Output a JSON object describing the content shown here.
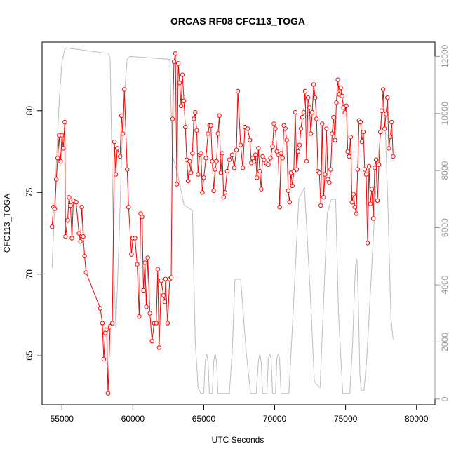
{
  "chart_data": {
    "type": "line",
    "title": "ORCAS RF08 CFC113_TOGA",
    "xlabel": "UTC Seconds",
    "ylabel": "CFC113_TOGA",
    "xlim": [
      53600,
      81300
    ],
    "ylim": [
      62,
      84.2
    ],
    "y2lim": [
      -200,
      12500
    ],
    "x_ticks": [
      55000,
      60000,
      65000,
      70000,
      75000,
      80000
    ],
    "y_ticks": [
      65,
      70,
      75,
      80
    ],
    "y2_ticks": [
      0,
      2000,
      4000,
      6000,
      8000,
      10000,
      12000
    ],
    "x_tick_labels": [
      "55000",
      "60000",
      "65000",
      "70000",
      "75000",
      "80000"
    ],
    "y_tick_labels": [
      "65",
      "70",
      "75",
      "80"
    ],
    "y2_tick_labels": [
      "0",
      "2000",
      "4000",
      "6000",
      "8000",
      "10000",
      "12000"
    ],
    "colors": {
      "series": "#ff0000",
      "altitude": "#bebebe",
      "box": "#000000",
      "y2axis": "#999999"
    },
    "series": [
      {
        "values": [
          [
            54300,
            72.9
          ],
          [
            54400,
            74.1
          ],
          [
            54500,
            74.0
          ],
          [
            54600,
            75.8
          ],
          [
            54700,
            77.1
          ],
          [
            54800,
            78.5
          ],
          [
            54900,
            76.9
          ],
          [
            55000,
            78.5
          ],
          [
            55100,
            77.7
          ],
          [
            55200,
            79.3
          ],
          [
            55250,
            72.3
          ],
          [
            55400,
            73.3
          ],
          [
            55500,
            74.7
          ],
          [
            55600,
            74.2
          ],
          [
            55700,
            72.2
          ],
          [
            55800,
            74.5
          ],
          [
            56000,
            74.4
          ],
          [
            56200,
            72.5
          ],
          [
            56300,
            72.0
          ],
          [
            56400,
            74.1
          ],
          [
            56500,
            72.3
          ],
          [
            56600,
            71.1
          ],
          [
            56700,
            70.1
          ],
          [
            57700,
            67.9
          ],
          [
            57850,
            67.0
          ],
          [
            57950,
            64.8
          ],
          [
            58050,
            66.4
          ],
          [
            58150,
            66.6
          ],
          [
            58250,
            62.7
          ],
          [
            58400,
            66.8
          ],
          [
            58550,
            67.0
          ],
          [
            58700,
            78.1
          ],
          [
            58800,
            76.1
          ],
          [
            58900,
            77.7
          ],
          [
            59100,
            77.2
          ],
          [
            59200,
            79.7
          ],
          [
            59300,
            78.6
          ],
          [
            59400,
            81.3
          ],
          [
            59600,
            76.4
          ],
          [
            59700,
            74.1
          ],
          [
            59900,
            71.2
          ],
          [
            60000,
            72.2
          ],
          [
            60150,
            72.2
          ],
          [
            60300,
            70.6
          ],
          [
            60450,
            67.4
          ],
          [
            60550,
            73.7
          ],
          [
            60650,
            73.5
          ],
          [
            60750,
            69.0
          ],
          [
            60850,
            70.7
          ],
          [
            60950,
            68.0
          ],
          [
            61050,
            71.0
          ],
          [
            61200,
            67.6
          ],
          [
            61350,
            65.9
          ],
          [
            61500,
            67.0
          ],
          [
            61650,
            67.0
          ],
          [
            61750,
            70.3
          ],
          [
            61850,
            65.5
          ],
          [
            62000,
            69.6
          ],
          [
            62150,
            68.7
          ],
          [
            62250,
            68.3
          ],
          [
            62300,
            69.7
          ],
          [
            62450,
            67.0
          ],
          [
            62600,
            69.7
          ],
          [
            62700,
            69.8
          ],
          [
            62800,
            79.5
          ],
          [
            62900,
            83.0
          ],
          [
            63000,
            83.5
          ],
          [
            63100,
            75.5
          ],
          [
            63200,
            82.9
          ],
          [
            63300,
            81.7
          ],
          [
            63400,
            80.3
          ],
          [
            63500,
            82.2
          ],
          [
            63600,
            80.6
          ],
          [
            63700,
            79.0
          ],
          [
            63800,
            77.0
          ],
          [
            63900,
            75.7
          ],
          [
            64000,
            76.9
          ],
          [
            64100,
            76.2
          ],
          [
            64200,
            77.4
          ],
          [
            64300,
            79.5
          ],
          [
            64400,
            79.9
          ],
          [
            64500,
            78.8
          ],
          [
            64600,
            76.1
          ],
          [
            64700,
            77.3
          ],
          [
            64800,
            77.4
          ],
          [
            64900,
            75.0
          ],
          [
            65000,
            75.9
          ],
          [
            65150,
            77.1
          ],
          [
            65300,
            78.6
          ],
          [
            65400,
            79.1
          ],
          [
            65500,
            79.1
          ],
          [
            65600,
            76.9
          ],
          [
            65700,
            75.1
          ],
          [
            65800,
            76.4
          ],
          [
            65900,
            76.9
          ],
          [
            66000,
            78.6
          ],
          [
            66100,
            79.7
          ],
          [
            66200,
            76.2
          ],
          [
            66300,
            77.4
          ],
          [
            66400,
            74.7
          ],
          [
            66500,
            75.0
          ],
          [
            66650,
            76.3
          ],
          [
            66800,
            77.0
          ],
          [
            67000,
            77.3
          ],
          [
            67150,
            76.5
          ],
          [
            67300,
            77.6
          ],
          [
            67400,
            81.2
          ],
          [
            67600,
            77.9
          ],
          [
            67750,
            76.5
          ],
          [
            67900,
            79.0
          ],
          [
            68100,
            78.9
          ],
          [
            68250,
            78.2
          ],
          [
            68350,
            76.8
          ],
          [
            68450,
            77.1
          ],
          [
            68550,
            76.9
          ],
          [
            68650,
            77.3
          ],
          [
            68750,
            75.9
          ],
          [
            68850,
            77.7
          ],
          [
            68950,
            76.3
          ],
          [
            69050,
            75.2
          ],
          [
            69150,
            77.2
          ],
          [
            69250,
            77.0
          ],
          [
            69400,
            76.8
          ],
          [
            69550,
            76.7
          ],
          [
            69700,
            77.1
          ],
          [
            69850,
            77.8
          ],
          [
            69950,
            79.2
          ],
          [
            70050,
            78.9
          ],
          [
            70150,
            77.5
          ],
          [
            70250,
            77.3
          ],
          [
            70350,
            74.1
          ],
          [
            70450,
            77.4
          ],
          [
            70550,
            77.1
          ],
          [
            70650,
            79.1
          ],
          [
            70750,
            78.9
          ],
          [
            70850,
            78.2
          ],
          [
            70950,
            75.1
          ],
          [
            71050,
            74.4
          ],
          [
            71150,
            76.2
          ],
          [
            71250,
            75.4
          ],
          [
            71350,
            76.3
          ],
          [
            71450,
            79.9
          ],
          [
            71550,
            76.4
          ],
          [
            71650,
            77.5
          ],
          [
            71750,
            77.9
          ],
          [
            71850,
            78.9
          ],
          [
            71950,
            79.6
          ],
          [
            72050,
            79.9
          ],
          [
            72150,
            81.2
          ],
          [
            72250,
            76.9
          ],
          [
            72350,
            80.8
          ],
          [
            72450,
            80.2
          ],
          [
            72550,
            78.6
          ],
          [
            72650,
            79.9
          ],
          [
            72750,
            81.6
          ],
          [
            72850,
            80.8
          ],
          [
            72950,
            79.5
          ],
          [
            73050,
            76.3
          ],
          [
            73150,
            76.2
          ],
          [
            73250,
            74.2
          ],
          [
            73350,
            79.2
          ],
          [
            73450,
            74.7
          ],
          [
            73550,
            76.1
          ],
          [
            73650,
            78.9
          ],
          [
            73750,
            75.8
          ],
          [
            73850,
            75.6
          ],
          [
            73950,
            76.4
          ],
          [
            74050,
            78.6
          ],
          [
            74150,
            79.6
          ],
          [
            74250,
            78.2
          ],
          [
            74350,
            80.5
          ],
          [
            74450,
            81.9
          ],
          [
            74550,
            81.0
          ],
          [
            74650,
            81.4
          ],
          [
            74750,
            80.9
          ],
          [
            74850,
            80.2
          ],
          [
            74950,
            79.9
          ],
          [
            75050,
            80.3
          ],
          [
            75150,
            77.5
          ],
          [
            75250,
            77.2
          ],
          [
            75350,
            78.4
          ],
          [
            75450,
            74.4
          ],
          [
            75550,
            74.9
          ],
          [
            75650,
            74.1
          ],
          [
            75750,
            73.7
          ],
          [
            75850,
            76.4
          ],
          [
            75950,
            79.4
          ],
          [
            76050,
            79.3
          ],
          [
            76150,
            78.1
          ],
          [
            76250,
            78.7
          ],
          [
            76350,
            76.4
          ],
          [
            76450,
            76.1
          ],
          [
            76550,
            71.9
          ],
          [
            76650,
            76.6
          ],
          [
            76750,
            74.3
          ],
          [
            76850,
            75.2
          ],
          [
            76950,
            73.4
          ],
          [
            77050,
            76.5
          ],
          [
            77150,
            77.0
          ],
          [
            77250,
            74.5
          ],
          [
            77350,
            76.7
          ],
          [
            77450,
            78.7
          ],
          [
            77550,
            80.0
          ],
          [
            77650,
            81.3
          ],
          [
            77750,
            78.9
          ],
          [
            77850,
            79.8
          ],
          [
            77950,
            80.8
          ],
          [
            78050,
            77.7
          ],
          [
            78150,
            78.4
          ],
          [
            78250,
            79.3
          ],
          [
            78350,
            77.2
          ]
        ]
      },
      {
        "name": "",
        "values": [
          [
            54300,
            4600
          ],
          [
            54600,
            8200
          ],
          [
            54800,
            10400
          ],
          [
            55000,
            11800
          ],
          [
            55200,
            12250
          ],
          [
            55300,
            12300
          ],
          [
            58300,
            12100
          ],
          [
            58400,
            11900
          ],
          [
            58500,
            9000
          ],
          [
            58700,
            4000
          ],
          [
            58800,
            2500
          ],
          [
            59000,
            5200
          ],
          [
            59300,
            10000
          ],
          [
            59600,
            11900
          ],
          [
            59800,
            12000
          ],
          [
            62600,
            11900
          ],
          [
            62800,
            8500
          ],
          [
            63200,
            7800
          ],
          [
            63600,
            6800
          ],
          [
            64200,
            6600
          ],
          [
            64400,
            2000
          ],
          [
            64600,
            400
          ],
          [
            64800,
            200
          ],
          [
            65000,
            200
          ],
          [
            65100,
            1300
          ],
          [
            65200,
            1600
          ],
          [
            65300,
            1300
          ],
          [
            65400,
            200
          ],
          [
            65600,
            200
          ],
          [
            65700,
            1300
          ],
          [
            65800,
            1600
          ],
          [
            65900,
            1300
          ],
          [
            66000,
            200
          ],
          [
            66800,
            200
          ],
          [
            67000,
            1600
          ],
          [
            67200,
            4200
          ],
          [
            67600,
            4200
          ],
          [
            68000,
            1600
          ],
          [
            68300,
            200
          ],
          [
            68700,
            200
          ],
          [
            68850,
            1300
          ],
          [
            68950,
            1600
          ],
          [
            69050,
            1300
          ],
          [
            69150,
            200
          ],
          [
            69450,
            200
          ],
          [
            69550,
            1400
          ],
          [
            69650,
            1600
          ],
          [
            69750,
            1400
          ],
          [
            69850,
            200
          ],
          [
            70050,
            200
          ],
          [
            70150,
            1400
          ],
          [
            70250,
            1600
          ],
          [
            70350,
            1400
          ],
          [
            70450,
            200
          ],
          [
            71000,
            200
          ],
          [
            71300,
            3000
          ],
          [
            71700,
            7000
          ],
          [
            72100,
            7400
          ],
          [
            72500,
            3800
          ],
          [
            72800,
            600
          ],
          [
            73200,
            400
          ],
          [
            73400,
            2800
          ],
          [
            73700,
            6500
          ],
          [
            74000,
            7000
          ],
          [
            74300,
            7000
          ],
          [
            74500,
            3000
          ],
          [
            74800,
            200
          ],
          [
            75300,
            200
          ],
          [
            75500,
            2000
          ],
          [
            75600,
            3500
          ],
          [
            75700,
            4700
          ],
          [
            75800,
            4900
          ],
          [
            75900,
            3400
          ],
          [
            76000,
            900
          ],
          [
            76100,
            300
          ],
          [
            76300,
            300
          ],
          [
            76500,
            1500
          ],
          [
            76800,
            4200
          ],
          [
            77200,
            8000
          ],
          [
            77500,
            9500
          ],
          [
            77700,
            10500
          ],
          [
            77800,
            9500
          ],
          [
            78000,
            6500
          ],
          [
            78200,
            2800
          ],
          [
            78350,
            2100
          ]
        ]
      }
    ]
  }
}
